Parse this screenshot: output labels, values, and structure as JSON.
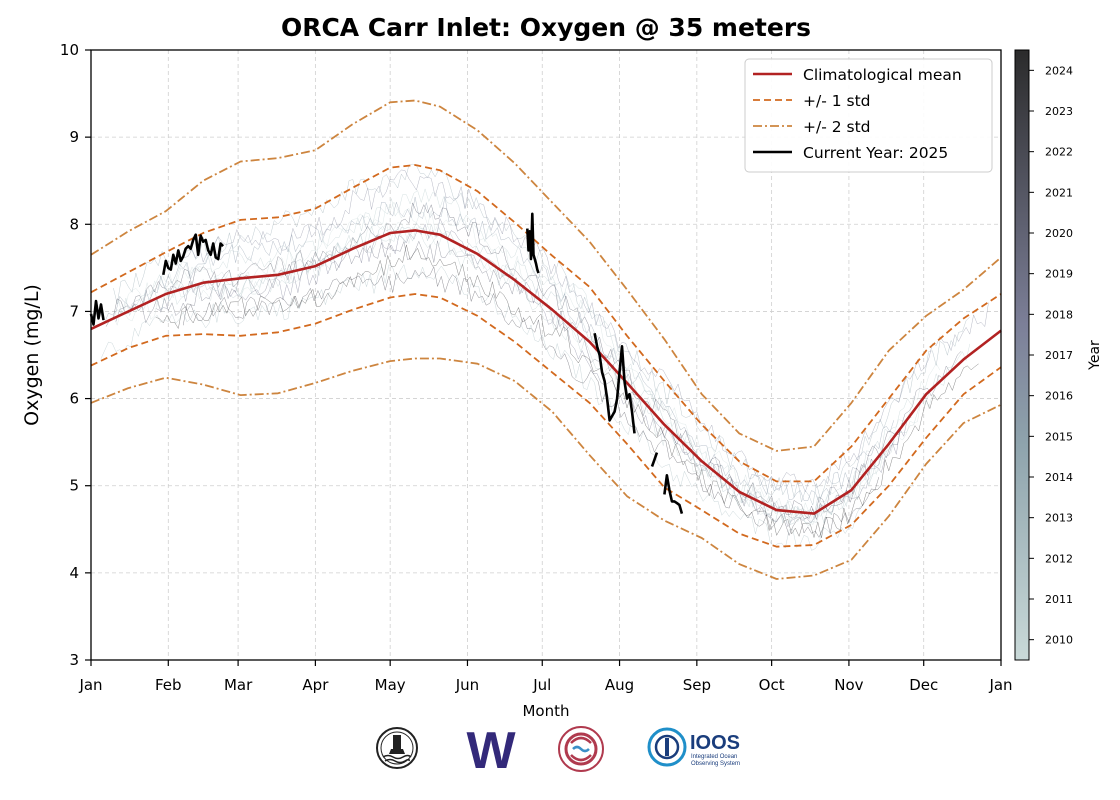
{
  "chart_data": {
    "type": "line",
    "title": "ORCA Carr Inlet: Oxygen @ 35 meters",
    "xlabel": "Month",
    "ylabel": "Oxygen (mg/L)",
    "ylim": [
      3,
      10
    ],
    "yticks": [
      3,
      4,
      5,
      6,
      7,
      8,
      9,
      10
    ],
    "x_tick_labels": [
      "Jan",
      "Feb",
      "Mar",
      "Apr",
      "May",
      "Jun",
      "Jul",
      "Aug",
      "Sep",
      "Oct",
      "Nov",
      "Dec",
      "Jan"
    ],
    "x_tick_days": [
      0,
      31,
      59,
      90,
      120,
      151,
      181,
      212,
      243,
      273,
      304,
      334,
      365
    ],
    "xlim": [
      0,
      365
    ],
    "grid": true,
    "legend_position": "top-right",
    "legend": [
      {
        "label": "Climatological mean",
        "color": "#b22222",
        "dash": "solid"
      },
      {
        "label": "+/- 1 std",
        "color": "#d2691e",
        "dash": "dashed"
      },
      {
        "label": "+/- 2 std",
        "color": "#cd853f",
        "dash": "dashdot"
      },
      {
        "label": "Current Year: 2025",
        "color": "#000000",
        "dash": "solid"
      }
    ],
    "colorbar": {
      "label": "Year",
      "ticks": [
        "2010",
        "2011",
        "2012",
        "2013",
        "2014",
        "2015",
        "2016",
        "2017",
        "2018",
        "2019",
        "2020",
        "2021",
        "2022",
        "2023",
        "2024"
      ],
      "color_low": "#c9d9d8",
      "color_high": "#2b2b2b"
    },
    "series": [
      {
        "name": "Climatological mean",
        "color": "#b22222",
        "dash": "solid",
        "x": [
          0,
          15,
          30,
          45,
          60,
          75,
          90,
          105,
          120,
          130,
          140,
          155,
          170,
          185,
          200,
          215,
          230,
          245,
          260,
          275,
          290,
          305,
          320,
          335,
          350,
          365
        ],
        "y": [
          6.8,
          7.0,
          7.2,
          7.33,
          7.38,
          7.42,
          7.52,
          7.72,
          7.9,
          7.93,
          7.88,
          7.66,
          7.36,
          7.02,
          6.65,
          6.18,
          5.7,
          5.28,
          4.93,
          4.72,
          4.68,
          4.95,
          5.48,
          6.05,
          6.45,
          6.78
        ]
      },
      {
        "name": "+/- 1 std upper",
        "color": "#d2691e",
        "dash": "dashed",
        "x": [
          0,
          15,
          30,
          45,
          60,
          75,
          90,
          105,
          120,
          130,
          140,
          155,
          170,
          185,
          200,
          215,
          230,
          245,
          260,
          275,
          290,
          305,
          320,
          335,
          350,
          365
        ],
        "y": [
          7.22,
          7.45,
          7.68,
          7.9,
          8.05,
          8.08,
          8.18,
          8.42,
          8.65,
          8.68,
          8.62,
          8.38,
          8.02,
          7.64,
          7.28,
          6.72,
          6.2,
          5.7,
          5.28,
          5.05,
          5.05,
          5.45,
          6.0,
          6.55,
          6.92,
          7.2
        ]
      },
      {
        "name": "+/- 1 std lower",
        "color": "#d2691e",
        "dash": "dashed",
        "x": [
          0,
          15,
          30,
          45,
          60,
          75,
          90,
          105,
          120,
          130,
          140,
          155,
          170,
          185,
          200,
          215,
          230,
          245,
          260,
          275,
          290,
          305,
          320,
          335,
          350,
          365
        ],
        "y": [
          6.38,
          6.58,
          6.72,
          6.74,
          6.72,
          6.76,
          6.86,
          7.02,
          7.16,
          7.2,
          7.16,
          6.95,
          6.65,
          6.3,
          5.95,
          5.48,
          4.98,
          4.72,
          4.45,
          4.3,
          4.32,
          4.55,
          5.0,
          5.55,
          6.05,
          6.36
        ]
      },
      {
        "name": "+/- 2 std upper",
        "color": "#cd853f",
        "dash": "dashdot",
        "x": [
          0,
          15,
          30,
          45,
          60,
          75,
          90,
          105,
          120,
          130,
          140,
          155,
          170,
          185,
          200,
          215,
          230,
          245,
          260,
          275,
          290,
          305,
          320,
          335,
          350,
          365
        ],
        "y": [
          7.65,
          7.92,
          8.15,
          8.5,
          8.72,
          8.76,
          8.85,
          9.15,
          9.4,
          9.42,
          9.35,
          9.08,
          8.7,
          8.25,
          7.8,
          7.25,
          6.68,
          6.05,
          5.6,
          5.4,
          5.45,
          5.95,
          6.55,
          6.95,
          7.25,
          7.62
        ]
      },
      {
        "name": "+/- 2 std lower",
        "color": "#cd853f",
        "dash": "dashdot",
        "x": [
          0,
          15,
          30,
          45,
          60,
          75,
          90,
          105,
          120,
          130,
          140,
          155,
          170,
          185,
          200,
          215,
          230,
          245,
          260,
          275,
          290,
          305,
          320,
          335,
          350,
          365
        ],
        "y": [
          5.95,
          6.12,
          6.24,
          6.16,
          6.04,
          6.06,
          6.18,
          6.32,
          6.43,
          6.46,
          6.46,
          6.4,
          6.2,
          5.85,
          5.35,
          4.88,
          4.6,
          4.4,
          4.1,
          3.93,
          3.97,
          4.15,
          4.65,
          5.25,
          5.72,
          5.93
        ]
      }
    ],
    "current_year": {
      "name": "Current Year: 2025",
      "color": "#000000",
      "segments": [
        {
          "x": [
            0,
            1,
            2,
            3,
            4,
            5
          ],
          "y": [
            6.97,
            6.85,
            7.12,
            6.92,
            7.08,
            6.9
          ]
        },
        {
          "x": [
            29,
            30,
            31,
            32,
            33,
            34,
            35,
            36,
            37,
            38,
            39,
            40,
            41,
            42,
            43,
            44,
            45,
            46,
            47,
            48,
            49,
            50,
            51,
            52,
            53
          ],
          "y": [
            7.42,
            7.58,
            7.5,
            7.48,
            7.65,
            7.55,
            7.7,
            7.58,
            7.63,
            7.72,
            7.75,
            7.72,
            7.82,
            7.88,
            7.65,
            7.87,
            7.8,
            7.82,
            7.7,
            7.65,
            7.78,
            7.62,
            7.6,
            7.78,
            7.75
          ]
        },
        {
          "x": [
            175,
            175.5,
            176,
            176.5,
            177,
            177.5,
            178,
            178.5,
            179,
            179.5
          ],
          "y": [
            7.95,
            7.7,
            7.92,
            7.6,
            8.12,
            7.65,
            7.6,
            7.55,
            7.48,
            7.44
          ]
        },
        {
          "x": [
            202,
            203,
            204,
            205,
            206,
            207,
            208,
            209,
            210,
            211,
            212,
            213,
            214,
            215,
            216,
            217,
            218
          ],
          "y": [
            6.75,
            6.6,
            6.5,
            6.3,
            6.2,
            6.0,
            5.75,
            5.8,
            5.85,
            6.0,
            6.3,
            6.6,
            6.2,
            6.0,
            6.05,
            5.85,
            5.6
          ]
        },
        {
          "x": [
            225,
            226,
            227
          ],
          "y": [
            5.22,
            5.3,
            5.38
          ]
        },
        {
          "x": [
            230,
            231,
            232,
            233,
            234,
            235,
            236,
            237
          ],
          "y": [
            4.9,
            5.12,
            4.95,
            4.82,
            4.82,
            4.8,
            4.78,
            4.68
          ]
        }
      ]
    }
  },
  "logos": [
    {
      "name": "noaa-lighthouse-logo"
    },
    {
      "name": "uw-logo",
      "text": "W",
      "color": "#33297a"
    },
    {
      "name": "nanoos-logo"
    },
    {
      "name": "ioos-logo",
      "text": "IOOS",
      "subtext1": "Integrated Ocean",
      "subtext2": "Observing System",
      "color": "#1a3d7c"
    }
  ]
}
